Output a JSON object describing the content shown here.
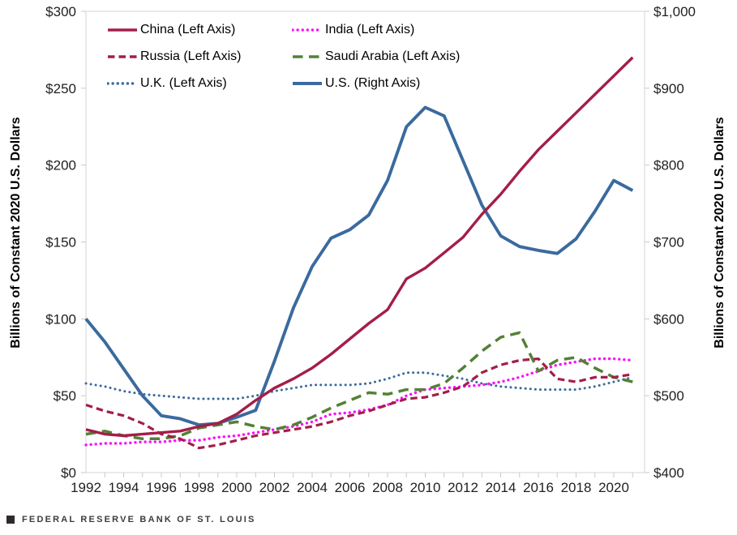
{
  "footer": {
    "text": "FEDERAL RESERVE BANK OF ST. LOUIS"
  },
  "chart_data": {
    "type": "line",
    "title": "",
    "grid": "none",
    "legend_position": "top-left-inside",
    "x_years": [
      1992,
      1993,
      1994,
      1995,
      1996,
      1997,
      1998,
      1999,
      2000,
      2001,
      2002,
      2003,
      2004,
      2005,
      2006,
      2007,
      2008,
      2009,
      2010,
      2011,
      2012,
      2013,
      2014,
      2015,
      2016,
      2017,
      2018,
      2019,
      2020,
      2021
    ],
    "x_axis": {
      "labeled_ticks": [
        "1992",
        "1994",
        "1996",
        "1998",
        "2000",
        "2002",
        "2004",
        "2006",
        "2008",
        "2010",
        "2012",
        "2014",
        "2016",
        "2018",
        "2020"
      ],
      "labeled_tick_years": [
        1992,
        1994,
        1996,
        1998,
        2000,
        2002,
        2004,
        2006,
        2008,
        2010,
        2012,
        2014,
        2016,
        2018,
        2020
      ]
    },
    "left_axis": {
      "title": "Billions of Constant 2020 U.S. Dollars",
      "range": [
        0,
        300
      ],
      "tick_step": 50,
      "tick_labels": [
        "$0",
        "$50",
        "$100",
        "$150",
        "$200",
        "$250",
        "$300"
      ]
    },
    "right_axis": {
      "title": "Billions of Constant 2020 U.S. Dollars",
      "range": [
        400,
        1000
      ],
      "tick_step": 100,
      "tick_labels": [
        "$400",
        "$500",
        "$600",
        "$700",
        "$800",
        "$900",
        "$1,000"
      ]
    },
    "colors": {
      "crimson": "#A31E48",
      "steel_blue": "#3A6A9E",
      "magenta": "#FA12FA",
      "green": "#538135",
      "plot_border": "#D6D6D6",
      "tick_mark": "#C9C9C9",
      "axis_text": "#1f1f1f"
    },
    "series": [
      {
        "name": "china",
        "label": "China (Left Axis)",
        "axis": "left",
        "color": "#A31E48",
        "line_style": "solid",
        "width": 3.4,
        "values": [
          28,
          25,
          24,
          25,
          26,
          27,
          30,
          32,
          38,
          47,
          55,
          61,
          68,
          77,
          87,
          97,
          106,
          126,
          133,
          143,
          153,
          168,
          181,
          196,
          210,
          222,
          234,
          246,
          258,
          270
        ]
      },
      {
        "name": "india",
        "label": "India (Left Axis)",
        "axis": "left",
        "color": "#FA12FA",
        "line_style": "dot",
        "width": 3.4,
        "values": [
          18,
          19,
          19,
          20,
          20,
          21,
          21,
          23,
          24,
          26,
          28,
          30,
          33,
          38,
          39,
          41,
          44,
          50,
          54,
          55,
          56,
          57,
          59,
          62,
          66,
          70,
          72,
          74,
          74,
          73
        ]
      },
      {
        "name": "russia",
        "label": "Russia (Left Axis)",
        "axis": "left",
        "color": "#A31E48",
        "line_style": "dash",
        "width": 3.2,
        "values": [
          44,
          40,
          37,
          32,
          25,
          22,
          16,
          18,
          21,
          24,
          26,
          28,
          30,
          33,
          37,
          40,
          44,
          48,
          49,
          52,
          56,
          65,
          70,
          73,
          74,
          61,
          59,
          62,
          62,
          64
        ]
      },
      {
        "name": "saudi-arabia",
        "label": "Saudi Arabia (Left Axis)",
        "axis": "left",
        "color": "#538135",
        "line_style": "long-dash",
        "width": 3.5,
        "values": [
          25,
          27,
          24,
          22,
          22,
          24,
          29,
          31,
          33,
          30,
          28,
          31,
          36,
          42,
          47,
          52,
          51,
          54,
          54,
          58,
          68,
          79,
          88,
          91,
          66,
          73,
          75,
          68,
          62,
          59
        ]
      },
      {
        "name": "uk",
        "label": "U.K. (Left Axis)",
        "axis": "left",
        "color": "#3A6A9E",
        "line_style": "dot",
        "width": 3.0,
        "values": [
          58,
          56,
          53,
          51,
          50,
          49,
          48,
          48,
          48,
          50,
          53,
          55,
          57,
          57,
          57,
          58,
          61,
          65,
          65,
          63,
          61,
          58,
          56,
          55,
          54,
          54,
          54,
          56,
          59,
          62
        ]
      },
      {
        "name": "us",
        "label": "U.S. (Right Axis)",
        "axis": "right",
        "color": "#3A6A9E",
        "line_style": "solid",
        "width": 3.9,
        "values": [
          600,
          570,
          535,
          500,
          474,
          470,
          462,
          464,
          472,
          481,
          545,
          614,
          668,
          705,
          716,
          735,
          780,
          850,
          875,
          864,
          806,
          748,
          708,
          694,
          689,
          685,
          704,
          740,
          780,
          767
        ]
      }
    ]
  }
}
